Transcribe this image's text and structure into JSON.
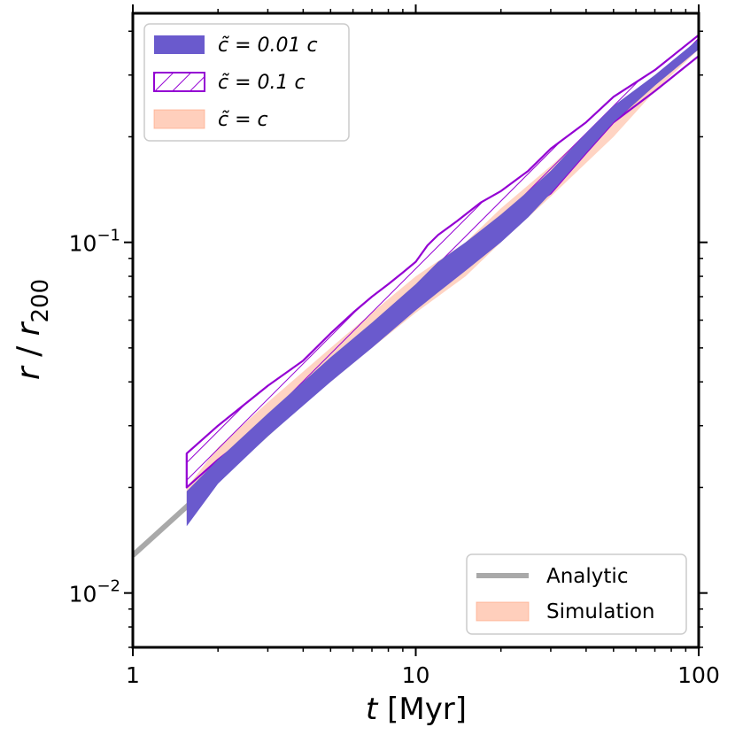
{
  "chart_data": {
    "type": "area",
    "title": "",
    "xlabel": "t  [Myr]",
    "ylabel": "r / r200",
    "xscale": "log",
    "yscale": "log",
    "xlim": [
      1,
      100
    ],
    "ylim": [
      0.007,
      0.45
    ],
    "x_ticks": [
      {
        "value": 1,
        "label": "1"
      },
      {
        "value": 10,
        "label": "10"
      },
      {
        "value": 100,
        "label": "100"
      }
    ],
    "y_ticks": [
      {
        "value": 0.01,
        "base": "10",
        "exp": "−2"
      },
      {
        "value": 0.1,
        "base": "10",
        "exp": "−1"
      }
    ],
    "legend_top": {
      "placement": "top-left",
      "entries": [
        {
          "label": "c̃ = 0.01 c",
          "style": "filled",
          "color": "#6a5acd"
        },
        {
          "label": "c̃ = 0.1 c",
          "style": "hatched",
          "color": "#9400d3"
        },
        {
          "label": "c̃ = c",
          "style": "filled",
          "color": "#ffa07a"
        }
      ]
    },
    "legend_bottom": {
      "placement": "bottom-right",
      "entries": [
        {
          "label": "Analytic",
          "style": "line",
          "color": "#a9a9a9"
        },
        {
          "label": "Simulation",
          "style": "filled",
          "color": "#ffa07a"
        }
      ]
    },
    "series": [
      {
        "name": "Analytic",
        "kind": "line",
        "color": "#a9a9a9",
        "x": [
          1,
          100
        ],
        "y": [
          0.0128,
          0.372
        ]
      },
      {
        "name": "c̃ = c",
        "kind": "band",
        "color": "#ffa07a",
        "opacity": 0.45,
        "x": [
          1.55,
          2,
          3,
          5,
          7,
          10,
          15,
          20,
          30,
          50,
          70,
          100
        ],
        "y_low": [
          0.016,
          0.021,
          0.029,
          0.04,
          0.05,
          0.063,
          0.08,
          0.1,
          0.135,
          0.2,
          0.27,
          0.355
        ],
        "y_high": [
          0.02,
          0.026,
          0.035,
          0.05,
          0.063,
          0.08,
          0.1,
          0.125,
          0.165,
          0.24,
          0.3,
          0.375
        ]
      },
      {
        "name": "c̃ = 0.1 c",
        "kind": "band",
        "color": "#9400d3",
        "hatch": true,
        "x": [
          1.55,
          2,
          3,
          4,
          5,
          6,
          7,
          8,
          9,
          10,
          11,
          12,
          14,
          17,
          20,
          25,
          30,
          40,
          50,
          70,
          100
        ],
        "y_low": [
          0.02,
          0.024,
          0.031,
          0.038,
          0.044,
          0.05,
          0.055,
          0.06,
          0.063,
          0.066,
          0.075,
          0.08,
          0.09,
          0.1,
          0.112,
          0.125,
          0.138,
          0.18,
          0.22,
          0.27,
          0.34
        ],
        "y_high": [
          0.025,
          0.03,
          0.039,
          0.046,
          0.055,
          0.063,
          0.07,
          0.076,
          0.082,
          0.088,
          0.098,
          0.105,
          0.115,
          0.13,
          0.14,
          0.16,
          0.185,
          0.22,
          0.26,
          0.31,
          0.39
        ]
      },
      {
        "name": "c̃ = 0.01 c",
        "kind": "band",
        "color": "#6a5acd",
        "x": [
          1.55,
          2,
          3,
          5,
          7,
          10,
          12,
          15,
          20,
          25,
          30,
          40,
          50,
          70,
          100
        ],
        "y_low": [
          0.0155,
          0.0205,
          0.028,
          0.04,
          0.05,
          0.064,
          0.072,
          0.083,
          0.1,
          0.118,
          0.138,
          0.18,
          0.22,
          0.28,
          0.355
        ],
        "y_high": [
          0.0195,
          0.024,
          0.0325,
          0.047,
          0.059,
          0.076,
          0.088,
          0.1,
          0.12,
          0.14,
          0.16,
          0.205,
          0.245,
          0.3,
          0.38
        ]
      }
    ]
  }
}
